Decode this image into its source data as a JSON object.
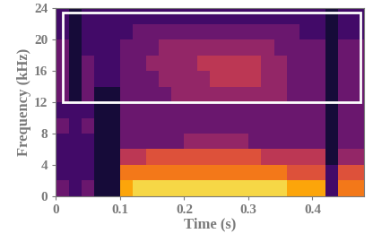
{
  "chart_data": {
    "type": "heatmap",
    "x_label": "Time (s)",
    "y_label": "Frequency (kHz)",
    "x_edges": [
      0,
      0.02,
      0.04,
      0.06,
      0.08,
      0.1,
      0.12,
      0.14,
      0.16,
      0.18,
      0.2,
      0.22,
      0.24,
      0.26,
      0.28,
      0.3,
      0.32,
      0.34,
      0.36,
      0.38,
      0.4,
      0.42,
      0.44,
      0.46,
      0.48
    ],
    "y_edges": [
      0,
      2,
      4,
      6,
      8,
      10,
      12,
      14,
      16,
      18,
      20,
      22,
      24
    ],
    "cells": [
      [
        3,
        2,
        3,
        1,
        1,
        8,
        9,
        9,
        9,
        9,
        9,
        9,
        9,
        9,
        9,
        9,
        9,
        9,
        8,
        8,
        8,
        2,
        7,
        7
      ],
      [
        2,
        2,
        2,
        1,
        1,
        7,
        7,
        7,
        7,
        7,
        7,
        7,
        7,
        7,
        7,
        7,
        7,
        7,
        6,
        6,
        6,
        2,
        6,
        6
      ],
      [
        2,
        2,
        2,
        1,
        1,
        5,
        5,
        6,
        6,
        6,
        6,
        6,
        6,
        6,
        6,
        6,
        5,
        5,
        5,
        5,
        5,
        1,
        4,
        4
      ],
      [
        2,
        2,
        2,
        1,
        1,
        3,
        3,
        3,
        3,
        3,
        4,
        4,
        4,
        4,
        4,
        3,
        3,
        3,
        3,
        3,
        3,
        1,
        3,
        3
      ],
      [
        3,
        2,
        3,
        1,
        1,
        3,
        3,
        3,
        3,
        3,
        3,
        3,
        3,
        3,
        3,
        3,
        3,
        3,
        3,
        3,
        3,
        1,
        3,
        3
      ],
      [
        2,
        2,
        2,
        1,
        1,
        3,
        3,
        3,
        3,
        3,
        3,
        3,
        3,
        3,
        3,
        3,
        3,
        3,
        3,
        3,
        3,
        1,
        3,
        3
      ],
      [
        3,
        1,
        3,
        1,
        1,
        3,
        3,
        3,
        3,
        4,
        4,
        4,
        4,
        4,
        4,
        4,
        4,
        4,
        3,
        3,
        3,
        1,
        3,
        3
      ],
      [
        3,
        1,
        3,
        2,
        2,
        3,
        3,
        3,
        4,
        4,
        4,
        4,
        5,
        5,
        5,
        5,
        4,
        4,
        3,
        3,
        3,
        1,
        3,
        3
      ],
      [
        3,
        1,
        3,
        2,
        2,
        3,
        3,
        4,
        4,
        4,
        4,
        5,
        5,
        5,
        5,
        5,
        4,
        4,
        3,
        3,
        3,
        1,
        3,
        3
      ],
      [
        3,
        1,
        2,
        2,
        2,
        3,
        3,
        3,
        4,
        4,
        4,
        4,
        4,
        4,
        4,
        4,
        4,
        3,
        3,
        3,
        3,
        1,
        3,
        3
      ],
      [
        2,
        1,
        2,
        2,
        2,
        2,
        3,
        3,
        3,
        3,
        3,
        3,
        3,
        3,
        3,
        3,
        3,
        3,
        3,
        2,
        2,
        1,
        2,
        2
      ],
      [
        2,
        1,
        2,
        2,
        2,
        2,
        2,
        2,
        2,
        2,
        2,
        2,
        2,
        2,
        2,
        2,
        2,
        2,
        2,
        2,
        2,
        1,
        2,
        2
      ]
    ],
    "color_range": [
      0,
      10
    ],
    "color": "inferno",
    "region": {
      "x": [
        0.01,
        0.475
      ],
      "y": [
        12,
        23.5
      ],
      "color": "#ffffff"
    },
    "xlim": [
      0,
      0.48
    ],
    "ylim": [
      0,
      24
    ],
    "xticks": [
      0,
      0.1,
      0.2,
      0.3,
      0.4
    ],
    "yticks": [
      0,
      4,
      8,
      12,
      16,
      20,
      24
    ]
  }
}
